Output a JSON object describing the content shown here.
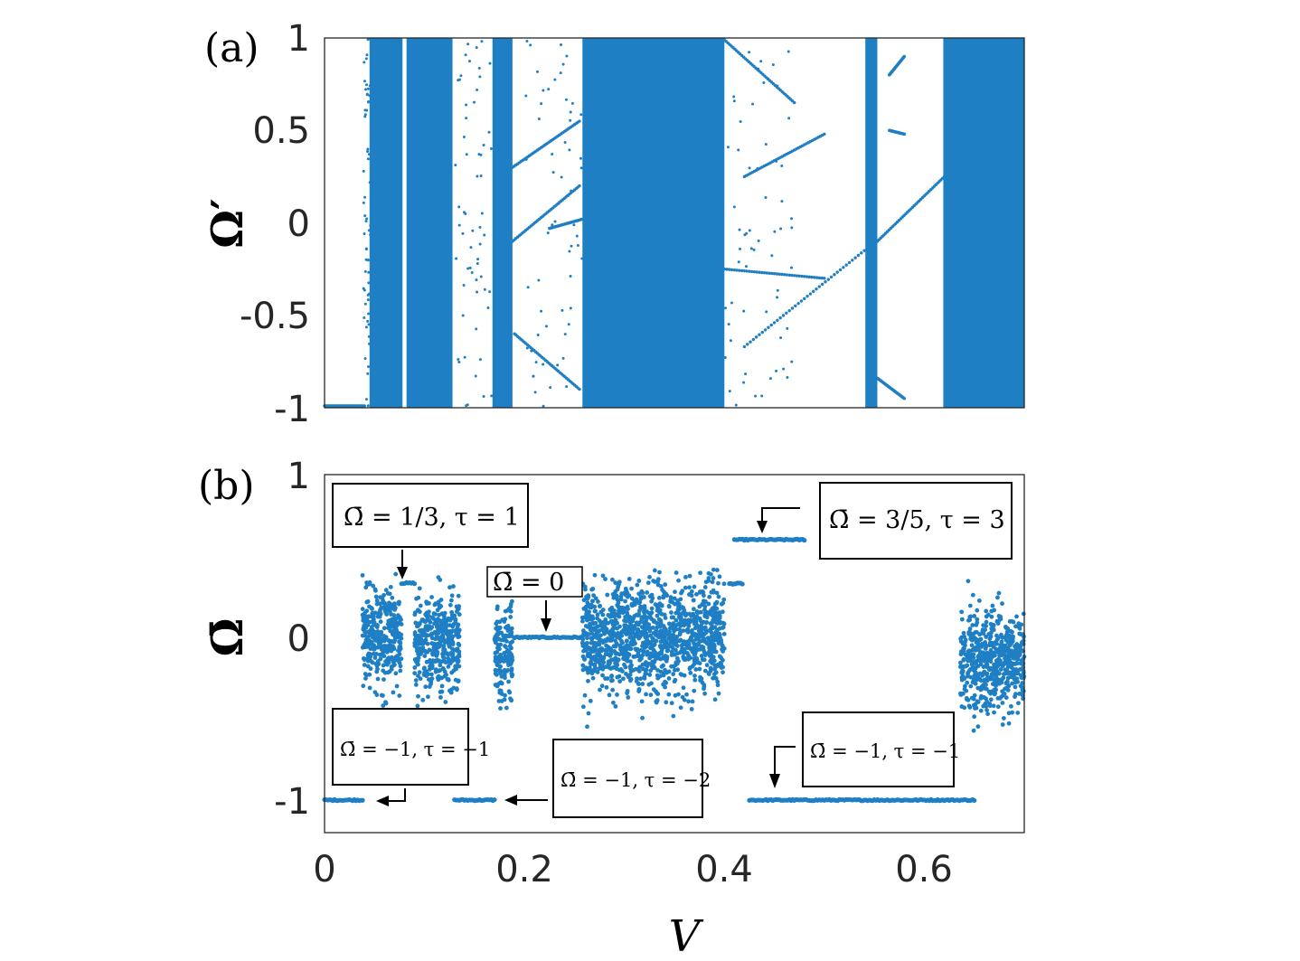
{
  "chart_data": [
    {
      "type": "scatter",
      "panel_label": "(a)",
      "xlabel": "",
      "ylabel": "Ω′",
      "xlim": [
        0,
        0.7
      ],
      "ylim": [
        -1,
        1
      ],
      "yticks": [
        "1",
        "0.5",
        "0",
        "-0.5",
        "-1"
      ],
      "grid": false,
      "color": "#1f7fc4",
      "chaotic_bands_x": [
        [
          0.045,
          0.078
        ],
        [
          0.082,
          0.128
        ],
        [
          0.168,
          0.188
        ],
        [
          0.258,
          0.4
        ],
        [
          0.541,
          0.553
        ],
        [
          0.619,
          0.7
        ]
      ],
      "branches": [
        {
          "x": [
            0.0,
            0.04
          ],
          "y": [
            -0.99,
            -0.99
          ]
        },
        {
          "x": [
            0.188,
            0.255
          ],
          "y": [
            0.3,
            0.55
          ]
        },
        {
          "x": [
            0.188,
            0.255
          ],
          "y": [
            -0.1,
            0.2
          ]
        },
        {
          "x": [
            0.19,
            0.255
          ],
          "y": [
            -0.6,
            -0.9
          ]
        },
        {
          "x": [
            0.225,
            0.258
          ],
          "y": [
            -0.03,
            0.02
          ]
        },
        {
          "x": [
            0.4,
            0.5
          ],
          "y": [
            -0.25,
            -0.3
          ]
        },
        {
          "x": [
            0.4,
            0.47
          ],
          "y": [
            0.99,
            0.65
          ]
        },
        {
          "x": [
            0.42,
            0.5
          ],
          "y": [
            0.25,
            0.48
          ]
        },
        {
          "x": [
            0.42,
            0.54
          ],
          "y": [
            -0.67,
            -0.15
          ]
        },
        {
          "x": [
            0.553,
            0.62
          ],
          "y": [
            -0.1,
            0.25
          ]
        },
        {
          "x": [
            0.565,
            0.58
          ],
          "y": [
            0.8,
            0.9
          ]
        },
        {
          "x": [
            0.565,
            0.58
          ],
          "y": [
            0.5,
            0.48
          ]
        },
        {
          "x": [
            0.553,
            0.58
          ],
          "y": [
            -0.84,
            -0.95
          ]
        }
      ]
    },
    {
      "type": "scatter",
      "panel_label": "(b)",
      "xlabel": "V",
      "ylabel": "Ω̄",
      "xlim": [
        0,
        0.7
      ],
      "ylim": [
        -1.2,
        1.0
      ],
      "xticks": [
        "0",
        "0.2",
        "0.4",
        "0.6"
      ],
      "yticks": [
        "1",
        "0",
        "-1"
      ],
      "grid": false,
      "color": "#1f7fc4",
      "plateaus": [
        {
          "x": [
            0.0,
            0.038
          ],
          "y": -1
        },
        {
          "x": [
            0.077,
            0.09
          ],
          "y": 0.333
        },
        {
          "x": [
            0.13,
            0.17
          ],
          "y": -1
        },
        {
          "x": [
            0.19,
            0.258
          ],
          "y": 0
        },
        {
          "x": [
            0.405,
            0.418
          ],
          "y": 0.33
        },
        {
          "x": [
            0.41,
            0.48
          ],
          "y": 0.6
        },
        {
          "x": [
            0.425,
            0.65
          ],
          "y": -1
        }
      ],
      "noisy_regions": [
        {
          "x": [
            0.038,
            0.077
          ],
          "y_center": 0,
          "y_spread": 0.28
        },
        {
          "x": [
            0.09,
            0.135
          ],
          "y_center": -0.05,
          "y_spread": 0.3
        },
        {
          "x": [
            0.17,
            0.188
          ],
          "y_center": -0.1,
          "y_spread": 0.3
        },
        {
          "x": [
            0.258,
            0.4
          ],
          "y_center": 0,
          "y_spread": 0.33
        },
        {
          "x": [
            0.636,
            0.7
          ],
          "y_center": -0.15,
          "y_spread": 0.3
        }
      ],
      "annotations": [
        {
          "label": "Ω̄ = 1/3, τ = 1"
        },
        {
          "label": "Ω̄ = 0"
        },
        {
          "label": "Ω̄ = 3/5, τ = 3"
        },
        {
          "label": "Ω̄ = −1, τ = −1"
        },
        {
          "label": "Ω̄ = −1, τ = −2"
        },
        {
          "label": "Ω̄ = −1, τ = −1"
        }
      ]
    }
  ]
}
